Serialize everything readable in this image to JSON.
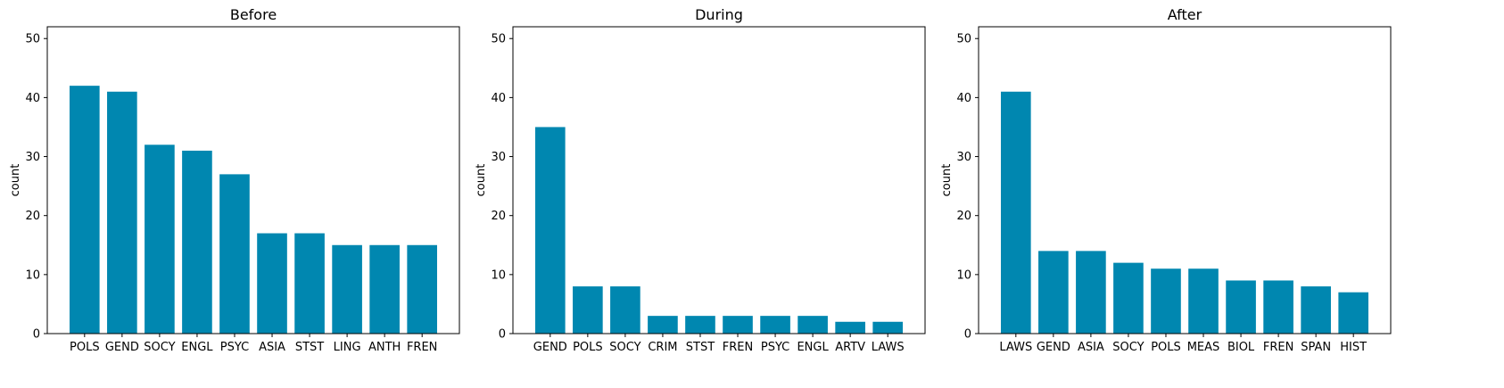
{
  "chart_data": [
    {
      "type": "bar",
      "title": "Before",
      "xlabel": "",
      "ylabel": "count",
      "ylim": [
        0,
        52
      ],
      "yticks": [
        0,
        10,
        20,
        30,
        40,
        50
      ],
      "categories": [
        "POLS",
        "GEND",
        "SOCY",
        "ENGL",
        "PSYC",
        "ASIA",
        "STST",
        "LING",
        "ANTH",
        "FREN"
      ],
      "values": [
        42,
        41,
        32,
        31,
        27,
        17,
        17,
        15,
        15,
        15
      ],
      "color": "#0087b0"
    },
    {
      "type": "bar",
      "title": "During",
      "xlabel": "",
      "ylabel": "count",
      "ylim": [
        0,
        52
      ],
      "yticks": [
        0,
        10,
        20,
        30,
        40,
        50
      ],
      "categories": [
        "GEND",
        "POLS",
        "SOCY",
        "CRIM",
        "STST",
        "FREN",
        "PSYC",
        "ENGL",
        "ARTV",
        "LAWS"
      ],
      "values": [
        35,
        8,
        8,
        3,
        3,
        3,
        3,
        3,
        2,
        2
      ],
      "color": "#0087b0"
    },
    {
      "type": "bar",
      "title": "After",
      "xlabel": "",
      "ylabel": "count",
      "ylim": [
        0,
        52
      ],
      "yticks": [
        0,
        10,
        20,
        30,
        40,
        50
      ],
      "categories": [
        "LAWS",
        "GEND",
        "ASIA",
        "SOCY",
        "POLS",
        "MEAS",
        "BIOL",
        "FREN",
        "SPAN",
        "HIST"
      ],
      "values": [
        41,
        14,
        14,
        12,
        11,
        11,
        9,
        9,
        8,
        7
      ],
      "color": "#0087b0"
    }
  ]
}
